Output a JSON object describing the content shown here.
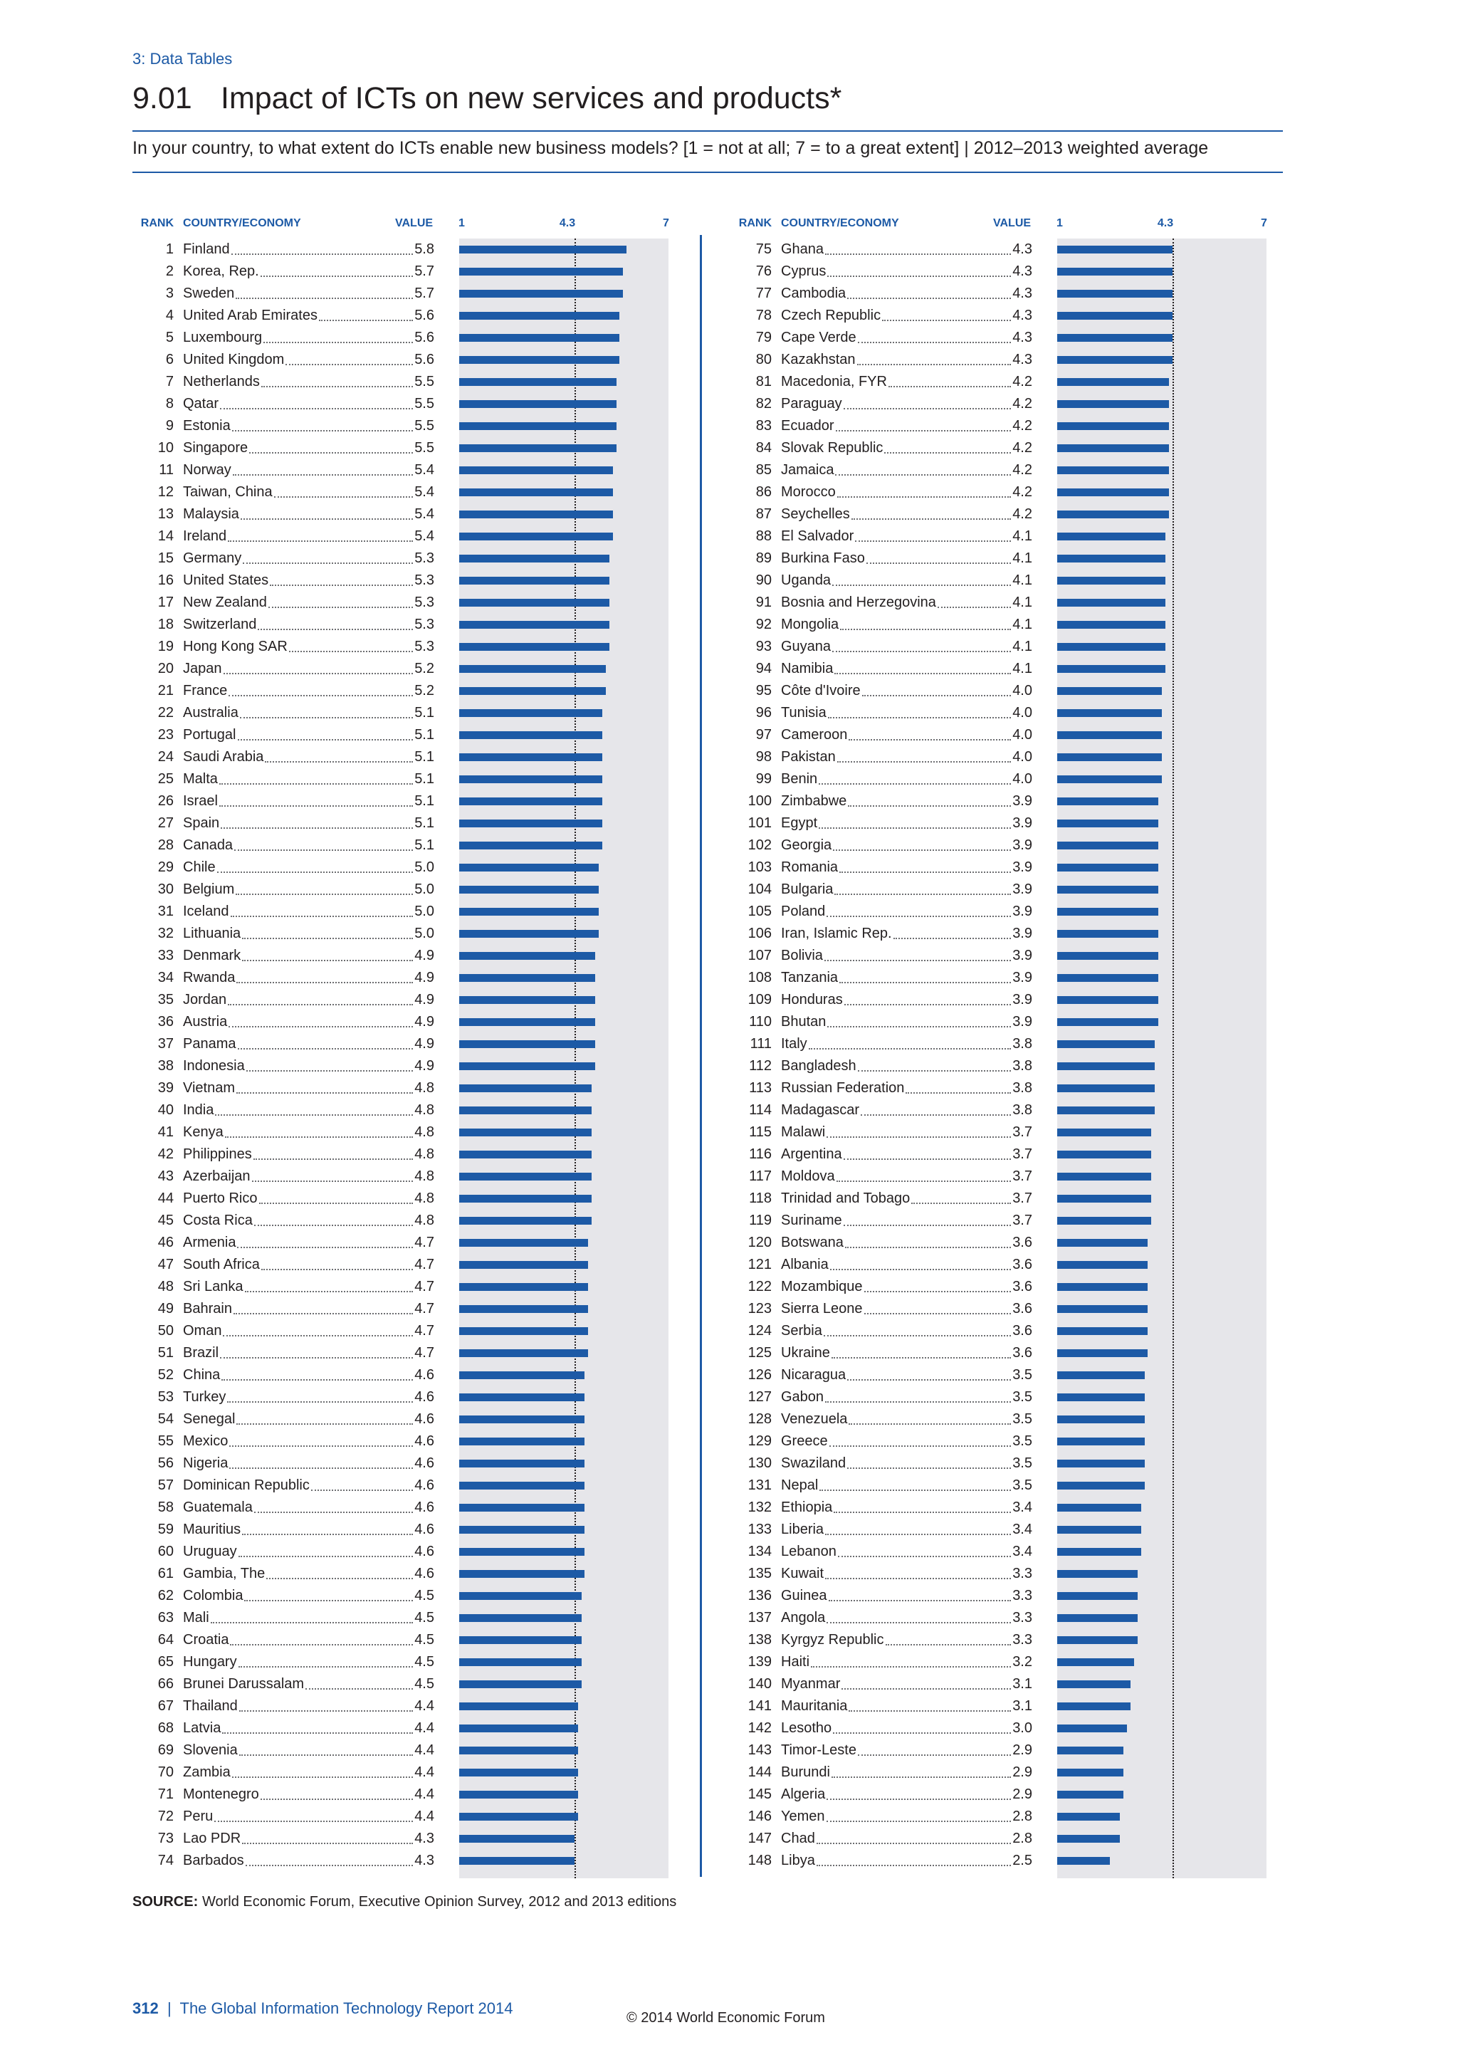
{
  "header": {
    "section": "3: Data Tables",
    "number": "9.01",
    "title": "Impact of ICTs on new services and products*",
    "question": "In your country, to what extent do ICTs enable new business models? [1 = not at all; 7 = to a great extent]  |  2012–2013 weighted average"
  },
  "columns": {
    "rank": "RANK",
    "country": "COUNTRY/ECONOMY",
    "value": "VALUE",
    "axis_min_label": "1",
    "axis_mean_label": "4.3",
    "axis_max_label": "7"
  },
  "chart_data": {
    "type": "bar",
    "orientation": "horizontal",
    "xlim": [
      1,
      7
    ],
    "reference_line": 4.3,
    "colors": {
      "bar": "#1d5aa6",
      "track": "#e6e6ea",
      "accent": "#1d5aa6"
    },
    "rows": [
      {
        "rank": "1",
        "country": "Finland",
        "value": 5.8
      },
      {
        "rank": "2",
        "country": "Korea, Rep.",
        "value": 5.7
      },
      {
        "rank": "3",
        "country": "Sweden",
        "value": 5.7
      },
      {
        "rank": "4",
        "country": "United Arab Emirates",
        "value": 5.6
      },
      {
        "rank": "5",
        "country": "Luxembourg",
        "value": 5.6
      },
      {
        "rank": "6",
        "country": "United Kingdom",
        "value": 5.6
      },
      {
        "rank": "7",
        "country": "Netherlands",
        "value": 5.5
      },
      {
        "rank": "8",
        "country": "Qatar",
        "value": 5.5
      },
      {
        "rank": "9",
        "country": "Estonia",
        "value": 5.5
      },
      {
        "rank": "10",
        "country": "Singapore",
        "value": 5.5
      },
      {
        "rank": "11",
        "country": "Norway",
        "value": 5.4
      },
      {
        "rank": "12",
        "country": "Taiwan, China",
        "value": 5.4
      },
      {
        "rank": "13",
        "country": "Malaysia",
        "value": 5.4
      },
      {
        "rank": "14",
        "country": "Ireland",
        "value": 5.4
      },
      {
        "rank": "15",
        "country": "Germany",
        "value": 5.3
      },
      {
        "rank": "16",
        "country": "United States",
        "value": 5.3
      },
      {
        "rank": "17",
        "country": "New Zealand",
        "value": 5.3
      },
      {
        "rank": "18",
        "country": "Switzerland",
        "value": 5.3
      },
      {
        "rank": "19",
        "country": "Hong Kong SAR",
        "value": 5.3
      },
      {
        "rank": "20",
        "country": "Japan",
        "value": 5.2
      },
      {
        "rank": "21",
        "country": "France",
        "value": 5.2
      },
      {
        "rank": "22",
        "country": "Australia",
        "value": 5.1
      },
      {
        "rank": "23",
        "country": "Portugal",
        "value": 5.1
      },
      {
        "rank": "24",
        "country": "Saudi Arabia",
        "value": 5.1
      },
      {
        "rank": "25",
        "country": "Malta",
        "value": 5.1
      },
      {
        "rank": "26",
        "country": "Israel",
        "value": 5.1
      },
      {
        "rank": "27",
        "country": "Spain",
        "value": 5.1
      },
      {
        "rank": "28",
        "country": "Canada",
        "value": 5.1
      },
      {
        "rank": "29",
        "country": "Chile",
        "value": 5.0
      },
      {
        "rank": "30",
        "country": "Belgium",
        "value": 5.0
      },
      {
        "rank": "31",
        "country": "Iceland",
        "value": 5.0
      },
      {
        "rank": "32",
        "country": "Lithuania",
        "value": 5.0
      },
      {
        "rank": "33",
        "country": "Denmark",
        "value": 4.9
      },
      {
        "rank": "34",
        "country": "Rwanda",
        "value": 4.9
      },
      {
        "rank": "35",
        "country": "Jordan",
        "value": 4.9
      },
      {
        "rank": "36",
        "country": "Austria",
        "value": 4.9
      },
      {
        "rank": "37",
        "country": "Panama",
        "value": 4.9
      },
      {
        "rank": "38",
        "country": "Indonesia",
        "value": 4.9
      },
      {
        "rank": "39",
        "country": "Vietnam",
        "value": 4.8
      },
      {
        "rank": "40",
        "country": "India",
        "value": 4.8
      },
      {
        "rank": "41",
        "country": "Kenya",
        "value": 4.8
      },
      {
        "rank": "42",
        "country": "Philippines",
        "value": 4.8
      },
      {
        "rank": "43",
        "country": "Azerbaijan",
        "value": 4.8
      },
      {
        "rank": "44",
        "country": "Puerto Rico",
        "value": 4.8
      },
      {
        "rank": "45",
        "country": "Costa Rica",
        "value": 4.8
      },
      {
        "rank": "46",
        "country": "Armenia",
        "value": 4.7
      },
      {
        "rank": "47",
        "country": "South Africa",
        "value": 4.7
      },
      {
        "rank": "48",
        "country": "Sri Lanka",
        "value": 4.7
      },
      {
        "rank": "49",
        "country": "Bahrain",
        "value": 4.7
      },
      {
        "rank": "50",
        "country": "Oman",
        "value": 4.7
      },
      {
        "rank": "51",
        "country": "Brazil",
        "value": 4.7
      },
      {
        "rank": "52",
        "country": "China",
        "value": 4.6
      },
      {
        "rank": "53",
        "country": "Turkey",
        "value": 4.6
      },
      {
        "rank": "54",
        "country": "Senegal",
        "value": 4.6
      },
      {
        "rank": "55",
        "country": "Mexico",
        "value": 4.6
      },
      {
        "rank": "56",
        "country": "Nigeria",
        "value": 4.6
      },
      {
        "rank": "57",
        "country": "Dominican Republic",
        "value": 4.6
      },
      {
        "rank": "58",
        "country": "Guatemala",
        "value": 4.6
      },
      {
        "rank": "59",
        "country": "Mauritius",
        "value": 4.6
      },
      {
        "rank": "60",
        "country": "Uruguay",
        "value": 4.6
      },
      {
        "rank": "61",
        "country": "Gambia, The",
        "value": 4.6
      },
      {
        "rank": "62",
        "country": "Colombia",
        "value": 4.5
      },
      {
        "rank": "63",
        "country": "Mali",
        "value": 4.5
      },
      {
        "rank": "64",
        "country": "Croatia",
        "value": 4.5
      },
      {
        "rank": "65",
        "country": "Hungary",
        "value": 4.5
      },
      {
        "rank": "66",
        "country": "Brunei Darussalam",
        "value": 4.5
      },
      {
        "rank": "67",
        "country": "Thailand",
        "value": 4.4
      },
      {
        "rank": "68",
        "country": "Latvia",
        "value": 4.4
      },
      {
        "rank": "69",
        "country": "Slovenia",
        "value": 4.4
      },
      {
        "rank": "70",
        "country": "Zambia",
        "value": 4.4
      },
      {
        "rank": "71",
        "country": "Montenegro",
        "value": 4.4
      },
      {
        "rank": "72",
        "country": "Peru",
        "value": 4.4
      },
      {
        "rank": "73",
        "country": "Lao PDR",
        "value": 4.3
      },
      {
        "rank": "74",
        "country": "Barbados",
        "value": 4.3
      },
      {
        "rank": "75",
        "country": "Ghana",
        "value": 4.3
      },
      {
        "rank": "76",
        "country": "Cyprus",
        "value": 4.3
      },
      {
        "rank": "77",
        "country": "Cambodia",
        "value": 4.3
      },
      {
        "rank": "78",
        "country": "Czech Republic",
        "value": 4.3
      },
      {
        "rank": "79",
        "country": "Cape Verde",
        "value": 4.3
      },
      {
        "rank": "80",
        "country": "Kazakhstan",
        "value": 4.3
      },
      {
        "rank": "81",
        "country": "Macedonia, FYR",
        "value": 4.2
      },
      {
        "rank": "82",
        "country": "Paraguay",
        "value": 4.2
      },
      {
        "rank": "83",
        "country": "Ecuador",
        "value": 4.2
      },
      {
        "rank": "84",
        "country": "Slovak Republic",
        "value": 4.2
      },
      {
        "rank": "85",
        "country": "Jamaica",
        "value": 4.2
      },
      {
        "rank": "86",
        "country": "Morocco",
        "value": 4.2
      },
      {
        "rank": "87",
        "country": "Seychelles",
        "value": 4.2
      },
      {
        "rank": "88",
        "country": "El Salvador",
        "value": 4.1
      },
      {
        "rank": "89",
        "country": "Burkina Faso",
        "value": 4.1
      },
      {
        "rank": "90",
        "country": "Uganda",
        "value": 4.1
      },
      {
        "rank": "91",
        "country": "Bosnia and Herzegovina",
        "value": 4.1
      },
      {
        "rank": "92",
        "country": "Mongolia",
        "value": 4.1
      },
      {
        "rank": "93",
        "country": "Guyana",
        "value": 4.1
      },
      {
        "rank": "94",
        "country": "Namibia",
        "value": 4.1
      },
      {
        "rank": "95",
        "country": "Côte d'Ivoire",
        "value": 4.0
      },
      {
        "rank": "96",
        "country": "Tunisia",
        "value": 4.0
      },
      {
        "rank": "97",
        "country": "Cameroon",
        "value": 4.0
      },
      {
        "rank": "98",
        "country": "Pakistan",
        "value": 4.0
      },
      {
        "rank": "99",
        "country": "Benin",
        "value": 4.0
      },
      {
        "rank": "100",
        "country": "Zimbabwe",
        "value": 3.9
      },
      {
        "rank": "101",
        "country": "Egypt",
        "value": 3.9
      },
      {
        "rank": "102",
        "country": "Georgia",
        "value": 3.9
      },
      {
        "rank": "103",
        "country": "Romania",
        "value": 3.9
      },
      {
        "rank": "104",
        "country": "Bulgaria",
        "value": 3.9
      },
      {
        "rank": "105",
        "country": "Poland",
        "value": 3.9
      },
      {
        "rank": "106",
        "country": "Iran, Islamic Rep.",
        "value": 3.9
      },
      {
        "rank": "107",
        "country": "Bolivia",
        "value": 3.9
      },
      {
        "rank": "108",
        "country": "Tanzania",
        "value": 3.9
      },
      {
        "rank": "109",
        "country": "Honduras",
        "value": 3.9
      },
      {
        "rank": "110",
        "country": "Bhutan",
        "value": 3.9
      },
      {
        "rank": "111",
        "country": "Italy",
        "value": 3.8
      },
      {
        "rank": "112",
        "country": "Bangladesh",
        "value": 3.8
      },
      {
        "rank": "113",
        "country": "Russian Federation",
        "value": 3.8
      },
      {
        "rank": "114",
        "country": "Madagascar",
        "value": 3.8
      },
      {
        "rank": "115",
        "country": "Malawi",
        "value": 3.7
      },
      {
        "rank": "116",
        "country": "Argentina",
        "value": 3.7
      },
      {
        "rank": "117",
        "country": "Moldova",
        "value": 3.7
      },
      {
        "rank": "118",
        "country": "Trinidad and Tobago",
        "value": 3.7
      },
      {
        "rank": "119",
        "country": "Suriname",
        "value": 3.7
      },
      {
        "rank": "120",
        "country": "Botswana",
        "value": 3.6
      },
      {
        "rank": "121",
        "country": "Albania",
        "value": 3.6
      },
      {
        "rank": "122",
        "country": "Mozambique",
        "value": 3.6
      },
      {
        "rank": "123",
        "country": "Sierra Leone",
        "value": 3.6
      },
      {
        "rank": "124",
        "country": "Serbia",
        "value": 3.6
      },
      {
        "rank": "125",
        "country": "Ukraine",
        "value": 3.6
      },
      {
        "rank": "126",
        "country": "Nicaragua",
        "value": 3.5
      },
      {
        "rank": "127",
        "country": "Gabon",
        "value": 3.5
      },
      {
        "rank": "128",
        "country": "Venezuela",
        "value": 3.5
      },
      {
        "rank": "129",
        "country": "Greece",
        "value": 3.5
      },
      {
        "rank": "130",
        "country": "Swaziland",
        "value": 3.5
      },
      {
        "rank": "131",
        "country": "Nepal",
        "value": 3.5
      },
      {
        "rank": "132",
        "country": "Ethiopia",
        "value": 3.4
      },
      {
        "rank": "133",
        "country": "Liberia",
        "value": 3.4
      },
      {
        "rank": "134",
        "country": "Lebanon",
        "value": 3.4
      },
      {
        "rank": "135",
        "country": "Kuwait",
        "value": 3.3
      },
      {
        "rank": "136",
        "country": "Guinea",
        "value": 3.3
      },
      {
        "rank": "137",
        "country": "Angola",
        "value": 3.3
      },
      {
        "rank": "138",
        "country": "Kyrgyz Republic",
        "value": 3.3
      },
      {
        "rank": "139",
        "country": "Haiti",
        "value": 3.2
      },
      {
        "rank": "140",
        "country": "Myanmar",
        "value": 3.1
      },
      {
        "rank": "141",
        "country": "Mauritania",
        "value": 3.1
      },
      {
        "rank": "142",
        "country": "Lesotho",
        "value": 3.0
      },
      {
        "rank": "143",
        "country": "Timor-Leste",
        "value": 2.9
      },
      {
        "rank": "144",
        "country": "Burundi",
        "value": 2.9
      },
      {
        "rank": "145",
        "country": "Algeria",
        "value": 2.9
      },
      {
        "rank": "146",
        "country": "Yemen",
        "value": 2.8
      },
      {
        "rank": "147",
        "country": "Chad",
        "value": 2.8
      },
      {
        "rank": "148",
        "country": "Libya",
        "value": 2.5
      }
    ]
  },
  "source": {
    "label": "SOURCE:",
    "text": "World Economic Forum, Executive Opinion Survey, 2012 and 2013 editions"
  },
  "footer": {
    "page": "312",
    "separator": "|",
    "report": "The Global Information Technology Report 2014",
    "copyright": "© 2014 World Economic Forum"
  }
}
